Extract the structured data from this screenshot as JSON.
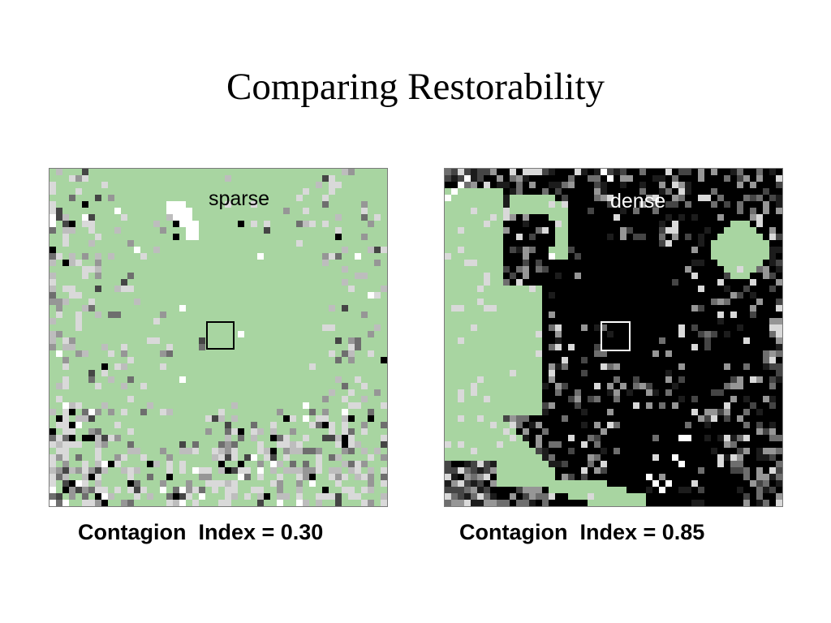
{
  "slide": {
    "title": "Comparing Restorability"
  },
  "left_map": {
    "label": "sparse",
    "label_color": "#000000",
    "caption": "Contagion  Index = 0.30",
    "contagion_index": 0.3,
    "background_color": "#a8d5a1",
    "marker_color": "#000000"
  },
  "right_map": {
    "label": "dense",
    "label_color": "#ffffff",
    "caption": "Contagion  Index = 0.85",
    "contagion_index": 0.85,
    "background_color": "#000000",
    "marker_color": "#ffffff"
  },
  "palette": {
    "habitat_green": "#a8d5a1",
    "gaps": [
      "#ffffff",
      "#d9d9d9",
      "#bdbdbd",
      "#969696",
      "#6e6e6e",
      "#454545",
      "#1c1c1c",
      "#000000"
    ]
  }
}
